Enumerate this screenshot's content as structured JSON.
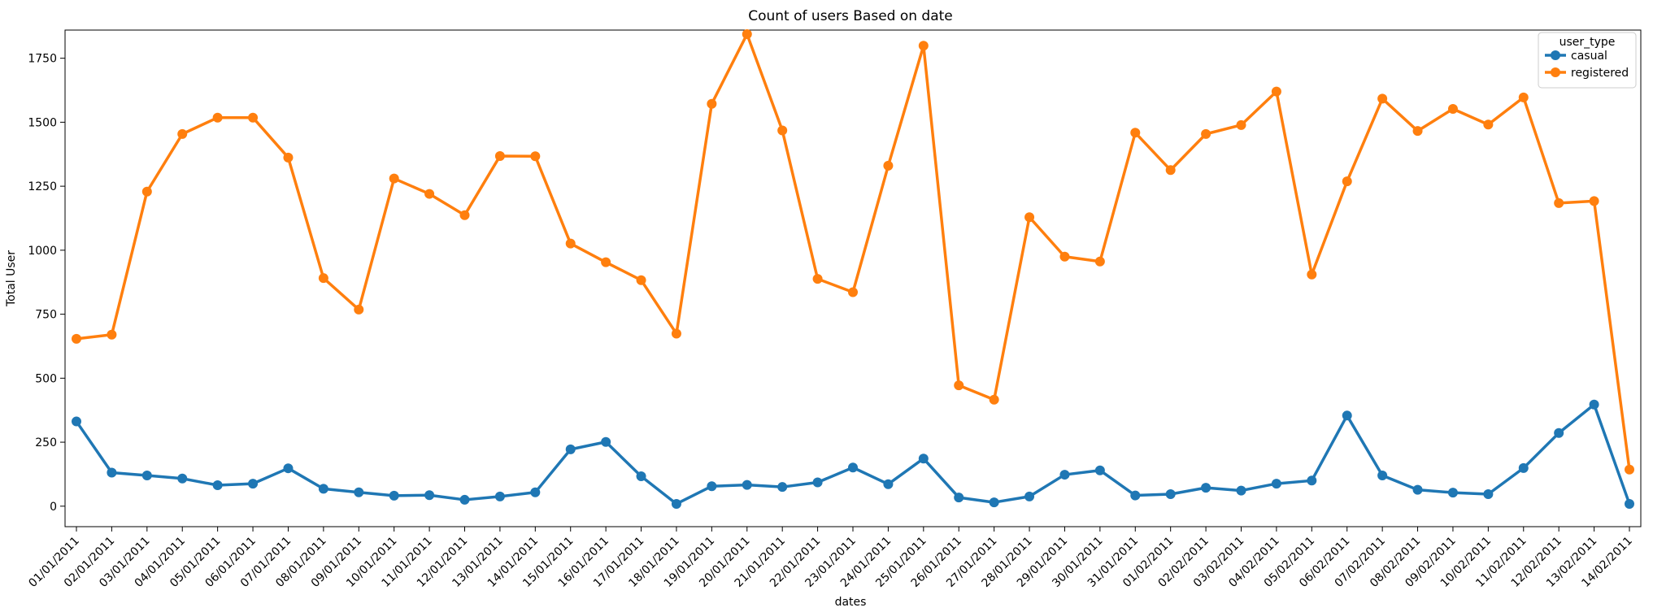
{
  "chart_data": {
    "type": "line",
    "title": "Count of users Based on date",
    "xlabel": "dates",
    "ylabel": "Total User",
    "ylim": [
      -80,
      1860
    ],
    "yticks": [
      0,
      250,
      500,
      750,
      1000,
      1250,
      1500,
      1750
    ],
    "grid": false,
    "legend_title": "user_type",
    "legend_position": "top-right",
    "categories": [
      "01/01/2011",
      "02/01/2011",
      "03/01/2011",
      "04/01/2011",
      "05/01/2011",
      "06/01/2011",
      "07/01/2011",
      "08/01/2011",
      "09/01/2011",
      "10/01/2011",
      "11/01/2011",
      "12/01/2011",
      "13/01/2011",
      "14/01/2011",
      "15/01/2011",
      "16/01/2011",
      "17/01/2011",
      "18/01/2011",
      "19/01/2011",
      "20/01/2011",
      "21/01/2011",
      "22/01/2011",
      "23/01/2011",
      "24/01/2011",
      "25/01/2011",
      "26/01/2011",
      "27/01/2011",
      "28/01/2011",
      "29/01/2011",
      "30/01/2011",
      "31/01/2011",
      "01/02/2011",
      "02/02/2011",
      "03/02/2011",
      "04/02/2011",
      "05/02/2011",
      "06/02/2011",
      "07/02/2011",
      "08/02/2011",
      "09/02/2011",
      "10/02/2011",
      "11/02/2011",
      "12/02/2011",
      "13/02/2011",
      "14/02/2011"
    ],
    "series": [
      {
        "name": "casual",
        "color": "#1f77b4",
        "values": [
          331,
          131,
          120,
          108,
          82,
          88,
          148,
          68,
          54,
          41,
          43,
          25,
          38,
          54,
          222,
          251,
          117,
          9,
          78,
          83,
          75,
          93,
          151,
          86,
          186,
          34,
          15,
          38,
          123,
          140,
          42,
          47,
          72,
          61,
          88,
          100,
          354,
          120,
          64,
          53,
          47,
          149,
          286,
          397,
          9
        ]
      },
      {
        "name": "registered",
        "color": "#ff7f0e",
        "values": [
          654,
          670,
          1229,
          1454,
          1518,
          1518,
          1362,
          891,
          768,
          1280,
          1220,
          1137,
          1368,
          1367,
          1026,
          953,
          883,
          674,
          1572,
          1844,
          1468,
          888,
          836,
          1330,
          1799,
          472,
          416,
          1129,
          975,
          956,
          1459,
          1313,
          1454,
          1489,
          1620,
          905,
          1269,
          1592,
          1466,
          1552,
          1491,
          1597,
          1184,
          1192,
          143
        ]
      }
    ]
  }
}
